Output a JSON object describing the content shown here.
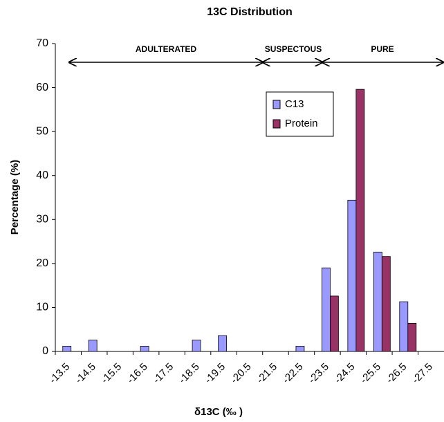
{
  "chart_data": {
    "type": "bar",
    "title": "13C Distribution",
    "x_label": "δ13C (‰ )",
    "y_label": "Percentage (%)",
    "categories": [
      "-13.5",
      "-14.5",
      "-15.5",
      "-16.5",
      "-17.5",
      "-18.5",
      "-19.5",
      "-20.5",
      "-21.5",
      "-22.5",
      "-23.5",
      "-24.5",
      "-25.5",
      "-26.5",
      "-27.5"
    ],
    "series": [
      {
        "name": "C13",
        "color": "#9999ff",
        "values": [
          1.2,
          2.6,
          0,
          1.2,
          0,
          2.6,
          3.6,
          0,
          0,
          1.2,
          19,
          34.4,
          22.6,
          11.3,
          0
        ]
      },
      {
        "name": "Protein",
        "color": "#993366",
        "values": [
          0,
          0,
          0,
          0,
          0,
          0,
          0,
          0,
          0,
          0,
          12.6,
          59.6,
          21.6,
          6.4,
          0
        ]
      }
    ],
    "ylim": [
      0,
      70
    ],
    "yticks": [
      0,
      10,
      20,
      30,
      40,
      50,
      60,
      70
    ],
    "annotations": [
      "ADULTERATED",
      "SUSPECTOUS",
      "PURE"
    ]
  }
}
